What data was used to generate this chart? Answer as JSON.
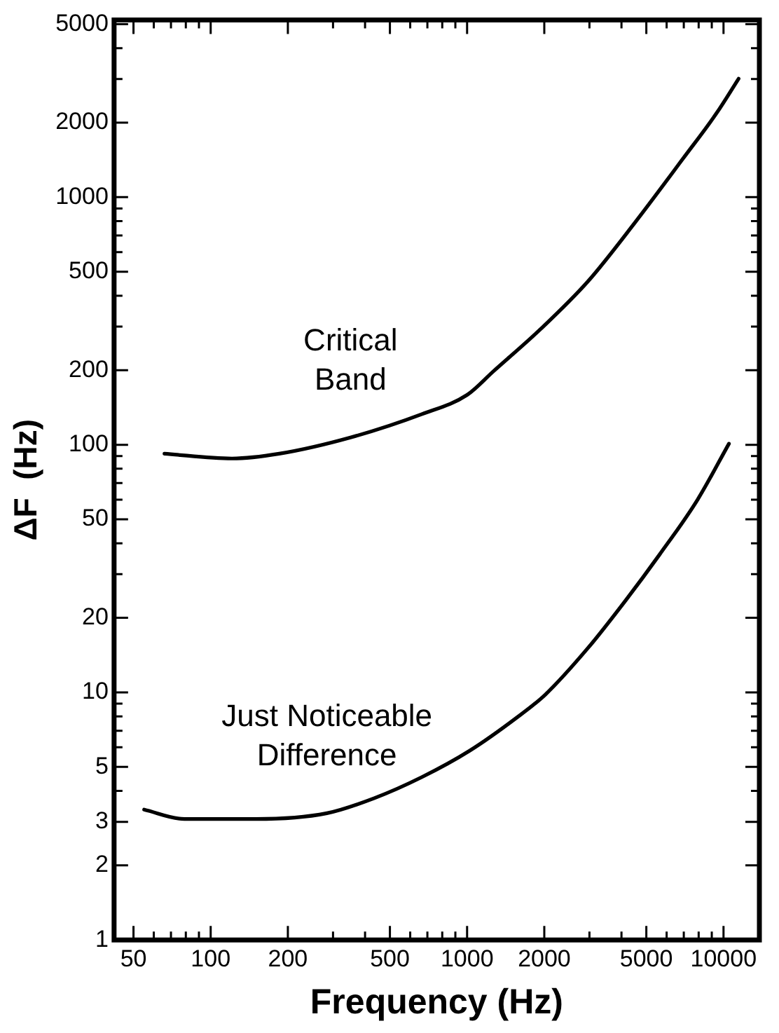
{
  "chart_data": {
    "type": "line",
    "xlabel": "Frequency (Hz)",
    "ylabel": "ΔF  (Hz)",
    "log": "xy",
    "grid": false,
    "legend": false,
    "marker": "none",
    "line_style": "solid",
    "xlim": [
      42,
      13800
    ],
    "ylim": [
      1,
      5200
    ],
    "xticks": [
      50,
      {
        "value": 60,
        "label": null
      },
      {
        "value": 70,
        "label": null
      },
      {
        "value": 80,
        "label": null
      },
      {
        "value": 90,
        "label": null
      },
      100,
      200,
      {
        "value": 300,
        "label": null
      },
      {
        "value": 400,
        "label": null
      },
      500,
      {
        "value": 600,
        "label": null
      },
      {
        "value": 700,
        "label": null
      },
      {
        "value": 800,
        "label": null
      },
      {
        "value": 900,
        "label": null
      },
      1000,
      2000,
      {
        "value": 3000,
        "label": null
      },
      {
        "value": 4000,
        "label": null
      },
      5000,
      {
        "value": 6000,
        "label": null
      },
      {
        "value": 7000,
        "label": null
      },
      {
        "value": 8000,
        "label": null
      },
      {
        "value": 9000,
        "label": null
      },
      10000
    ],
    "yticks": [
      1,
      2,
      3,
      {
        "value": 4,
        "label": null
      },
      5,
      {
        "value": 6,
        "label": null
      },
      {
        "value": 7,
        "label": null
      },
      {
        "value": 8,
        "label": null
      },
      {
        "value": 9,
        "label": null
      },
      10,
      20,
      {
        "value": 30,
        "label": null
      },
      {
        "value": 40,
        "label": null
      },
      50,
      {
        "value": 60,
        "label": null
      },
      {
        "value": 70,
        "label": null
      },
      {
        "value": 80,
        "label": null
      },
      {
        "value": 90,
        "label": null
      },
      100,
      200,
      {
        "value": 300,
        "label": null
      },
      {
        "value": 400,
        "label": null
      },
      500,
      {
        "value": 600,
        "label": null
      },
      {
        "value": 700,
        "label": null
      },
      {
        "value": 800,
        "label": null
      },
      {
        "value": 900,
        "label": null
      },
      1000,
      2000,
      {
        "value": 3000,
        "label": null
      },
      {
        "value": 4000,
        "label": null
      },
      5000
    ],
    "series": [
      {
        "name": "Critical Band",
        "color": "#000000",
        "x": [
          66,
          121,
          185,
          351,
          667,
          1000,
          1266,
          1940,
          2960,
          4520,
          6960,
          9380,
          11450
        ],
        "values": [
          92,
          88,
          92,
          107,
          133,
          159,
          198,
          294,
          457,
          791,
          1434,
          2180,
          3010
        ]
      },
      {
        "name": "Just Noticeable Difference",
        "color": "#000000",
        "x": [
          55,
          79,
          150,
          284,
          435,
          667,
          1020,
          1560,
          2020,
          2960,
          4150,
          5630,
          7920,
          10500
        ],
        "values": [
          3.36,
          3.08,
          3.08,
          3.25,
          3.74,
          4.55,
          5.8,
          7.9,
          9.8,
          15.1,
          23.5,
          36,
          60,
          101
        ]
      }
    ]
  }
}
